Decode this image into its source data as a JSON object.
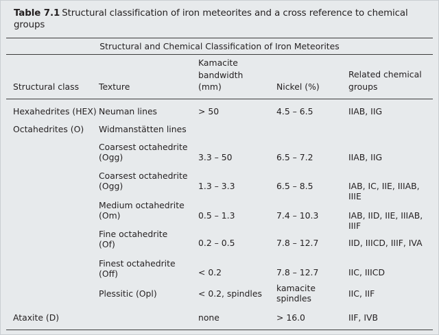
{
  "caption": {
    "label": "Table 7.1",
    "line1": "Structural classification of iron meteorites and a cross reference to chemical",
    "line2": "groups"
  },
  "table_title": "Structural and Chemical Classification of Iron Meteorites",
  "headers": {
    "structural_class": "Structural class",
    "texture": "Texture",
    "bandwidth": [
      "Kamacite",
      "bandwidth",
      "(mm)"
    ],
    "nickel": "Nickel (%)",
    "related": [
      "Related chemical",
      "groups"
    ]
  },
  "rows": [
    {
      "cls": [
        "Hexahedrites (HEX)"
      ],
      "texture": [
        "Neuman lines"
      ],
      "bandwidth": [
        "> 50"
      ],
      "nickel": [
        "4.5 – 6.5"
      ],
      "groups": [
        "IIAB, IIG"
      ]
    },
    {
      "cls": [
        "Octahedrites (O)"
      ],
      "texture": [
        "Widmanstätten lines"
      ],
      "bandwidth": [],
      "nickel": [],
      "groups": []
    },
    {
      "cls": [],
      "texture": [
        "Coarsest octahedrite",
        "(Ogg)"
      ],
      "bandwidth": [
        "3.3 – 50"
      ],
      "nickel": [
        "6.5 – 7.2"
      ],
      "groups": [
        "IIAB, IIG"
      ]
    },
    {
      "cls": [],
      "texture": [
        "Coarsest octahedrite",
        "(Ogg)"
      ],
      "bandwidth": [
        "1.3 – 3.3"
      ],
      "nickel": [
        "6.5 – 8.5"
      ],
      "groups": [
        "IAB, IC, IIE, IIIAB,",
        "IIIE"
      ]
    },
    {
      "cls": [],
      "texture": [
        "Medium octahedrite",
        "(Om)"
      ],
      "bandwidth": [
        "0.5 – 1.3"
      ],
      "nickel": [
        "7.4 – 10.3"
      ],
      "groups": [
        "IAB, IID, IIE, IIIAB,",
        "IIIF"
      ]
    },
    {
      "cls": [],
      "texture": [
        "Fine octahedrite",
        "(Of)"
      ],
      "bandwidth": [
        "0.2 – 0.5"
      ],
      "nickel": [
        "7.8 – 12.7"
      ],
      "groups": [
        "IID, IIICD, IIIF, IVA"
      ]
    },
    {
      "cls": [],
      "texture": [
        "Finest octahedrite",
        "(Off)"
      ],
      "bandwidth": [
        "< 0.2"
      ],
      "nickel": [
        "7.8 – 12.7"
      ],
      "groups": [
        "IIC, IIICD"
      ]
    },
    {
      "cls": [],
      "texture": [
        "Plessitic (Opl)"
      ],
      "bandwidth": [
        "< 0.2, spindles"
      ],
      "nickel": [
        "kamacite",
        "spindles"
      ],
      "groups": [
        "IIC, IIF"
      ]
    },
    {
      "cls": [
        "Ataxite (D)"
      ],
      "texture": [],
      "bandwidth": [
        "none"
      ],
      "nickel": [
        "> 16.0"
      ],
      "groups": [
        "IIF, IVB"
      ]
    }
  ]
}
